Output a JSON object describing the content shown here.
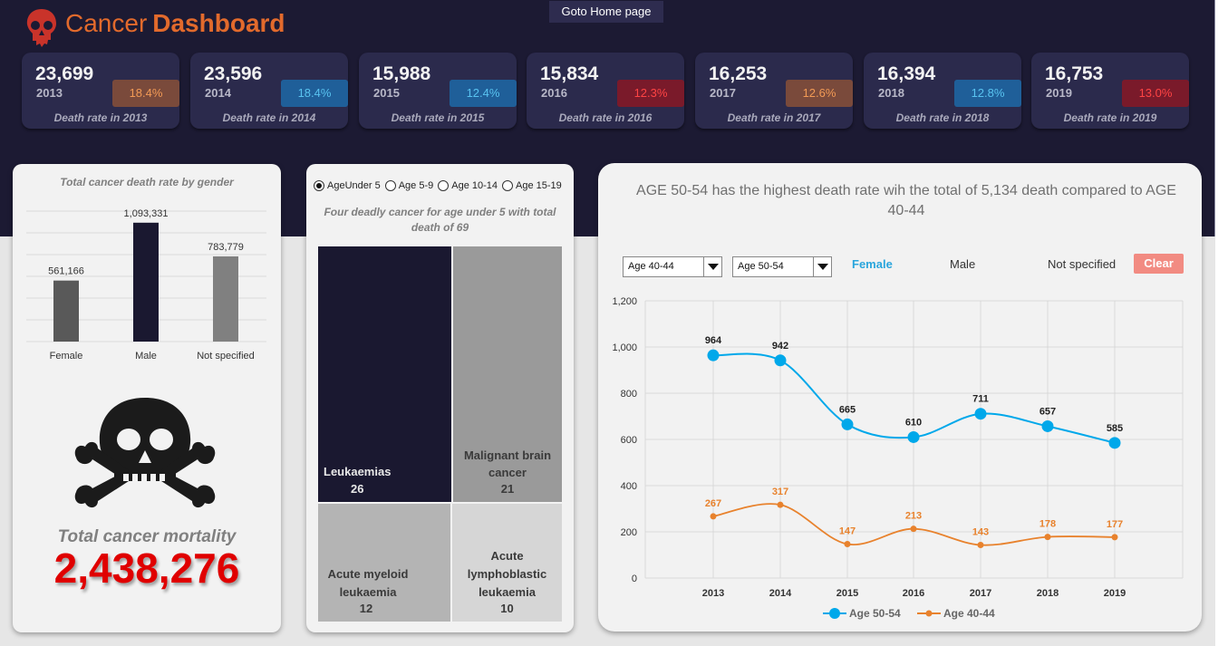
{
  "header": {
    "title_part1": "Cancer",
    "title_part2": "Dashboard",
    "home_button": "Goto Home page",
    "logo_icon": "skull-icon"
  },
  "kpis": [
    {
      "value": "23,699",
      "year": "2013",
      "badge": "18.4%",
      "label": "Death rate in 2013",
      "badge_bg": "#7a4a3b",
      "badge_fg": "#f29a55"
    },
    {
      "value": "23,596",
      "year": "2014",
      "badge": "18.4%",
      "label": "Death rate in 2014",
      "badge_bg": "#1f5f99",
      "badge_fg": "#59c3f0"
    },
    {
      "value": "15,988",
      "year": "2015",
      "badge": "12.4%",
      "label": "Death rate in 2015",
      "badge_bg": "#1f5f99",
      "badge_fg": "#59c3f0"
    },
    {
      "value": "15,834",
      "year": "2016",
      "badge": "12.3%",
      "label": "Death rate in 2016",
      "badge_bg": "#7a1a2a",
      "badge_fg": "#ff4444"
    },
    {
      "value": "16,253",
      "year": "2017",
      "badge": "12.6%",
      "label": "Death rate in 2017",
      "badge_bg": "#7a4a3b",
      "badge_fg": "#f29a55"
    },
    {
      "value": "16,394",
      "year": "2018",
      "badge": "12.8%",
      "label": "Death rate in 2018",
      "badge_bg": "#1f5f99",
      "badge_fg": "#59c3f0"
    },
    {
      "value": "16,753",
      "year": "2019",
      "badge": "13.0%",
      "label": "Death rate in 2019",
      "badge_bg": "#7a1a2a",
      "badge_fg": "#ff4444"
    }
  ],
  "gender_panel": {
    "mortality_label": "Total cancer mortality",
    "mortality_value": "2,438,276",
    "icon": "skull-crossbones-icon"
  },
  "age_panel": {
    "radios": [
      {
        "label": "AgeUnder 5",
        "selected": true
      },
      {
        "label": "Age 5-9",
        "selected": false
      },
      {
        "label": "Age 10-14",
        "selected": false
      },
      {
        "label": "Age 15-19",
        "selected": false
      }
    ],
    "title": "Four deadly cancer for age under 5 with  total death of 69",
    "treemap": [
      {
        "name": "Leukaemias",
        "value": "26"
      },
      {
        "name": "Malignant brain cancer",
        "value": "21"
      },
      {
        "name": "Acute myeloid leukaemia",
        "value": "12"
      },
      {
        "name": "Acute lymphoblastic leukaemia",
        "value": "10"
      }
    ]
  },
  "trend_panel": {
    "headline": "AGE 50-54 has the highest death rate wih the total of 5,134 death compared to AGE 40-44",
    "dropdown1": "Age 40-44",
    "dropdown2": "Age 50-54",
    "filter_female": "Female",
    "filter_male": "Male",
    "filter_not_specified": "Not specified",
    "clear_button": "Clear"
  },
  "chart_data": [
    {
      "type": "bar",
      "title": "Total cancer death rate by gender",
      "categories": [
        "Female",
        "Male",
        "Not specified"
      ],
      "values": [
        561166,
        1093331,
        783779
      ],
      "value_labels": [
        "561,166",
        "1,093,331",
        "783,779"
      ],
      "colors": [
        "#595959",
        "#1a1830",
        "#808080"
      ],
      "ylim": [
        0,
        1200000
      ],
      "grid": true
    },
    {
      "type": "line",
      "categories": [
        "2013",
        "2014",
        "2015",
        "2016",
        "2017",
        "2018",
        "2019"
      ],
      "y_ticks": [
        "0",
        "200",
        "400",
        "600",
        "800",
        "1,000",
        "1,200"
      ],
      "ylim": [
        0,
        1200
      ],
      "grid": true,
      "legend_position": "bottom",
      "series": [
        {
          "name": "Age 50-54",
          "values": [
            964,
            942,
            665,
            610,
            711,
            657,
            585
          ],
          "color": "#00a8ea"
        },
        {
          "name": "Age 40-44",
          "values": [
            267,
            317,
            147,
            213,
            143,
            178,
            177
          ],
          "color": "#e8822d"
        }
      ]
    }
  ]
}
